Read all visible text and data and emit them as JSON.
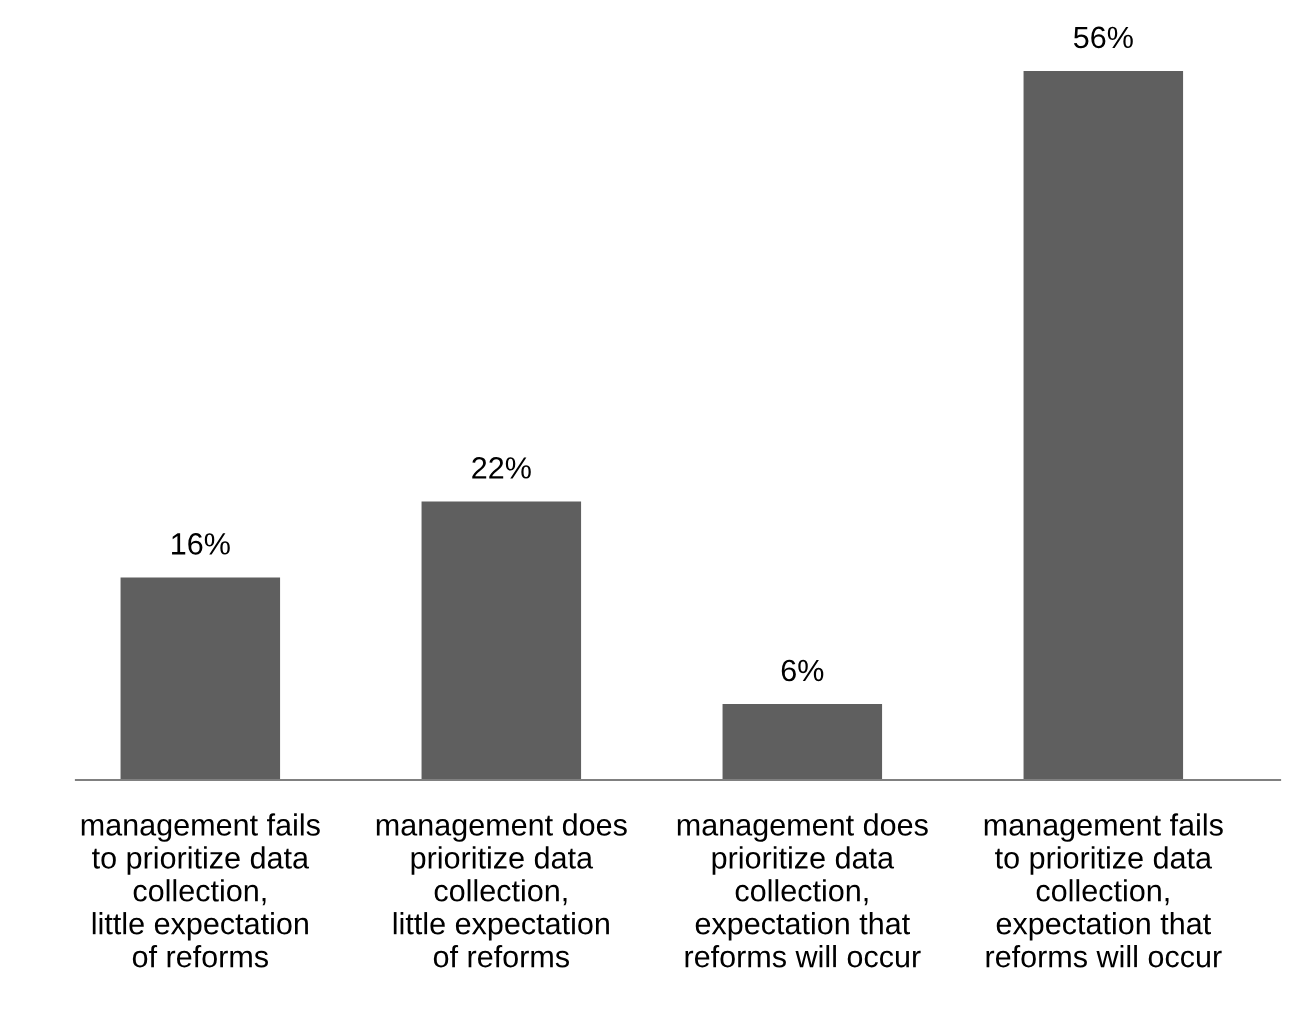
{
  "chart_data": {
    "type": "bar",
    "categories": [
      "management fails\nto prioritize data\ncollection,\nlittle expectation\nof reforms",
      "management does\nprioritize data\ncollection,\nlittle expectation\nof reforms",
      "management does\nprioritize data\ncollection,\nexpectation that\nreforms will occur",
      "management fails\nto prioritize data\ncollection,\nexpectation that\nreforms will occur"
    ],
    "values": [
      16,
      22,
      6,
      56
    ],
    "value_labels": [
      "16%",
      "22%",
      "6%",
      "56%"
    ],
    "color": "#5f5f5f",
    "grid": false,
    "legend": false
  }
}
